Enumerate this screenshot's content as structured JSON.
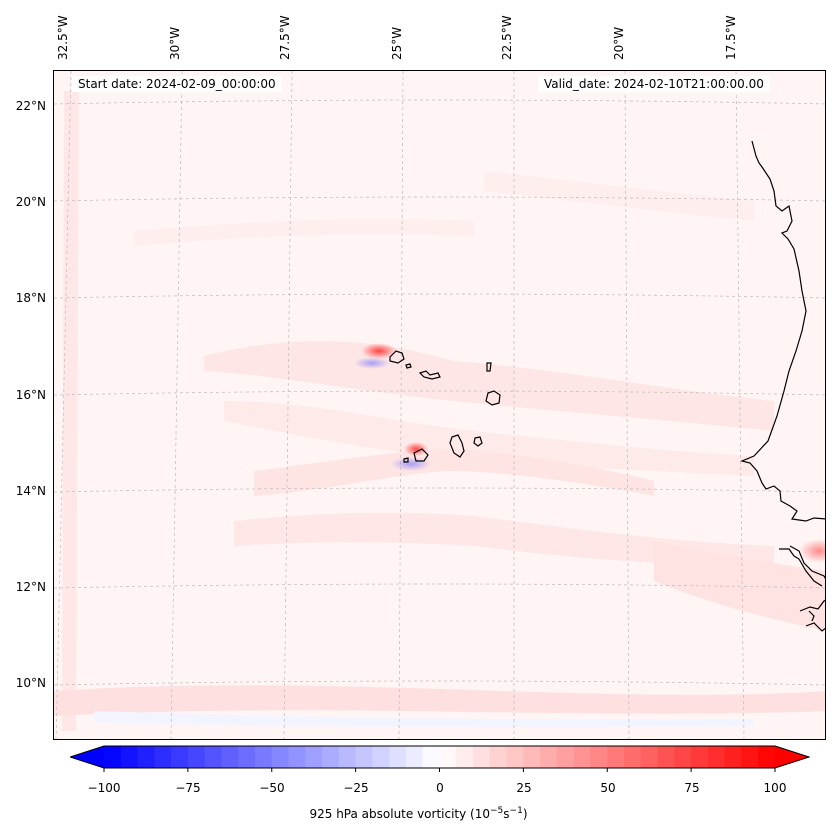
{
  "map": {
    "start_date": "Start date: 2024-02-09_00:00:00",
    "valid_date": "Valid_date: 2024-02-10T21:00:00.00",
    "lon_labels": [
      "32.5°W",
      "30°W",
      "27.5°W",
      "25°W",
      "22.5°W",
      "20°W",
      "17.5°W"
    ],
    "lat_labels": [
      "22°N",
      "20°N",
      "18°N",
      "16°N",
      "14°N",
      "12°N",
      "10°N"
    ],
    "coastline_color": "#000000",
    "gridline_color": "#bbbbbb"
  },
  "colorbar": {
    "ticks": [
      "−100",
      "−75",
      "−50",
      "−25",
      "0",
      "25",
      "50",
      "75",
      "100"
    ],
    "min": -100,
    "max": 100,
    "colormap": "bwr",
    "extend": "both",
    "title_prefix": "925 hPa absolute vorticity (10",
    "title_exp1": "−5",
    "title_mid": "s",
    "title_exp2": "−1",
    "title_suffix": ")"
  }
}
